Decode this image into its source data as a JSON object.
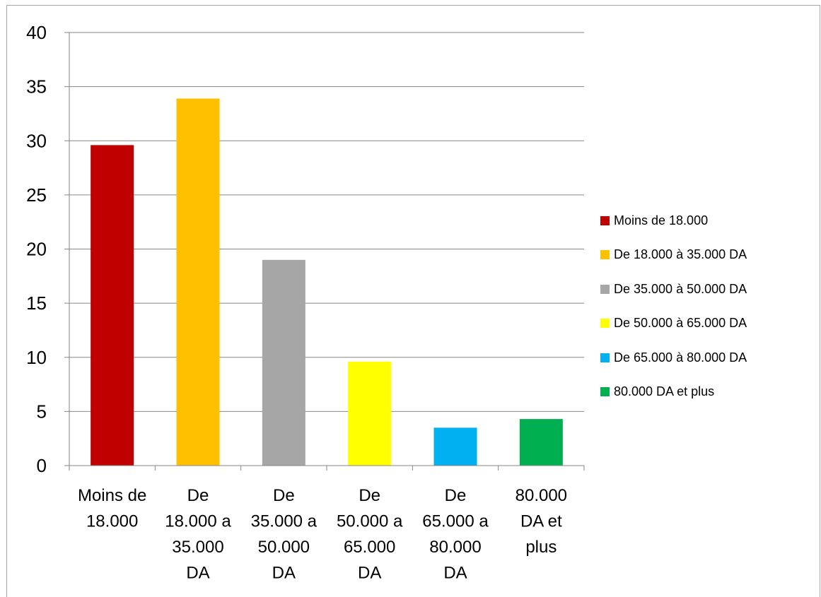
{
  "chart_data": {
    "type": "bar",
    "categories": [
      [
        "Moins de",
        "18.000"
      ],
      [
        "De",
        "18.000 a",
        "35.000",
        "DA"
      ],
      [
        "De",
        "35.000 a",
        "50.000",
        "DA"
      ],
      [
        "De",
        "50.000 a",
        "65.000",
        "DA"
      ],
      [
        "De",
        "65.000 a",
        "80.000",
        "DA"
      ],
      [
        "80.000",
        "DA et",
        "plus"
      ]
    ],
    "values": [
      29.6,
      33.9,
      19.0,
      9.6,
      3.5,
      4.3
    ],
    "colors": [
      "#c00000",
      "#ffc000",
      "#a6a6a6",
      "#ffff00",
      "#00b0f0",
      "#00b050"
    ],
    "ylim": [
      0,
      40
    ],
    "yticks": [
      0,
      5,
      10,
      15,
      20,
      25,
      30,
      35,
      40
    ],
    "grid": true,
    "legend_position": "right",
    "legend": [
      "Moins de 18.000",
      "De 18.000 à 35.000 DA",
      "De 35.000 à 50.000 DA",
      "De 50.000 à 65.000 DA",
      "De 65.000 à 80.000 DA",
      "80.000 DA et plus"
    ],
    "title": "",
    "xlabel": "",
    "ylabel": ""
  }
}
